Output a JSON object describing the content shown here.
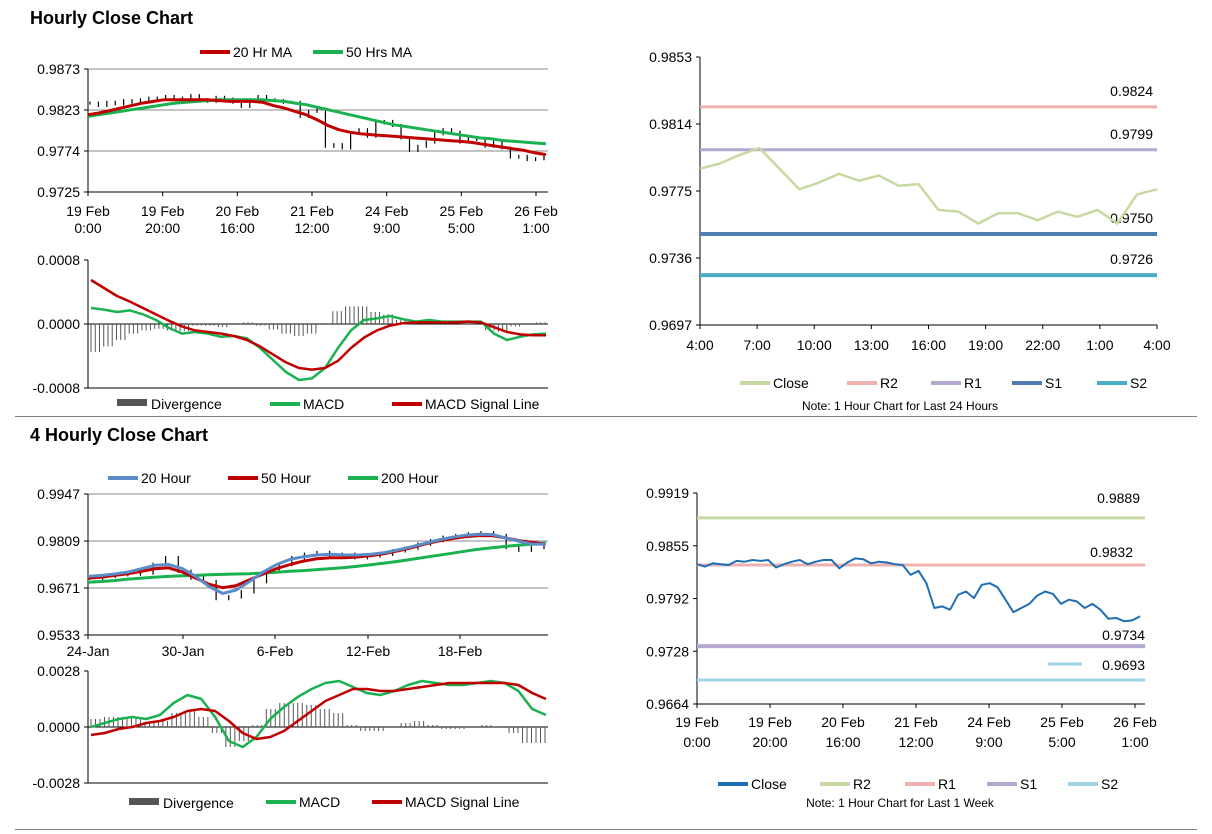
{
  "titles": {
    "hourly": "Hourly Close Chart",
    "four_hourly": "4 Hourly Close Chart"
  },
  "colors": {
    "red": "#c00000",
    "green": "#1ab150",
    "blue": "#5a8cc8",
    "grey": "#555555",
    "closeLight": "#c7d9a0",
    "r2": "#efb0b0",
    "r1": "#b4a8d0",
    "s1": "#4f7db1",
    "s2": "#4aaec4",
    "closeBlue": "#1f6eb4",
    "r2g": "#c7d9a0",
    "r1p": "#efb0b0",
    "s1p": "#b4a8d0",
    "s2c": "#9fd3e3"
  },
  "chart_data": [
    {
      "id": "hourly_price",
      "type": "line",
      "legend": [
        "20 Hr MA",
        "50 Hrs MA"
      ],
      "ylim": [
        0.9725,
        0.9873
      ],
      "yticks": [
        "0.9873",
        "0.9823",
        "0.9774",
        "0.9725"
      ],
      "xticks": [
        [
          "19 Feb",
          "0:00"
        ],
        [
          "19 Feb",
          "20:00"
        ],
        [
          "20 Feb",
          "16:00"
        ],
        [
          "21 Feb",
          "12:00"
        ],
        [
          "24 Feb",
          "9:00"
        ],
        [
          "25 Feb",
          "5:00"
        ],
        [
          "26 Feb",
          "1:00"
        ]
      ],
      "close": [
        0.9832,
        0.9829,
        0.9833,
        0.9831,
        0.9835,
        0.9833,
        0.9836,
        0.9838,
        0.9836,
        0.984,
        0.9838,
        0.9837,
        0.9841,
        0.9836,
        0.9834,
        0.9839,
        0.9837,
        0.9833,
        0.9828,
        0.9836,
        0.984,
        0.9836,
        0.9835,
        0.9833,
        0.9833,
        0.9816,
        0.9822,
        0.9825,
        0.978,
        0.9782,
        0.9778,
        0.9796,
        0.98,
        0.9792,
        0.9808,
        0.981,
        0.9805,
        0.979,
        0.9775,
        0.978,
        0.9785,
        0.9795,
        0.98,
        0.9797,
        0.9785,
        0.979,
        0.9788,
        0.978,
        0.9785,
        0.9778,
        0.9767,
        0.9768,
        0.9764,
        0.9765,
        0.977
      ],
      "ma20": [
        0.9818,
        0.982,
        0.9823,
        0.9826,
        0.9829,
        0.9832,
        0.9834,
        0.9836,
        0.9836,
        0.9836,
        0.9836,
        0.9836,
        0.9835,
        0.9834,
        0.9834,
        0.9834,
        0.9833,
        0.9829,
        0.9826,
        0.9822,
        0.9818,
        0.9812,
        0.9805,
        0.98,
        0.9797,
        0.9795,
        0.9794,
        0.9793,
        0.9792,
        0.9791,
        0.979,
        0.9789,
        0.9788,
        0.9787,
        0.9786,
        0.9785,
        0.9783,
        0.9781,
        0.9779,
        0.9777,
        0.9775,
        0.9772,
        0.977
      ],
      "ma50": [
        0.9816,
        0.9818,
        0.982,
        0.9822,
        0.9824,
        0.9826,
        0.9828,
        0.983,
        0.9832,
        0.9833,
        0.9834,
        0.9835,
        0.9836,
        0.9836,
        0.9836,
        0.9836,
        0.9836,
        0.9835,
        0.9834,
        0.9832,
        0.983,
        0.9827,
        0.9824,
        0.9821,
        0.9818,
        0.9815,
        0.9812,
        0.9809,
        0.9806,
        0.9804,
        0.9802,
        0.98,
        0.9798,
        0.9796,
        0.9794,
        0.9792,
        0.979,
        0.9789,
        0.9787,
        0.9786,
        0.9785,
        0.9784,
        0.9783
      ]
    },
    {
      "id": "hourly_macd",
      "type": "line",
      "legend": [
        "Divergence",
        "MACD",
        "MACD Signal Line"
      ],
      "ylim": [
        -0.0008,
        0.0008
      ],
      "yticks": [
        "0.0008",
        "0.0000",
        "-0.0008"
      ],
      "macd": [
        0.0002,
        0.00018,
        0.00015,
        0.00017,
        0.00012,
        5e-05,
        -5e-05,
        -0.00012,
        -0.0001,
        -0.00012,
        -0.00016,
        -0.00015,
        -0.00018,
        -0.0003,
        -0.00045,
        -0.0006,
        -0.0007,
        -0.00068,
        -0.00055,
        -0.0003,
        -8e-05,
        5e-05,
        7e-05,
        0.0001,
        6e-05,
        3e-05,
        5e-05,
        3e-05,
        3e-05,
        3e-05,
        3e-05,
        -0.00012,
        -0.0002,
        -0.00016,
        -0.00013,
        -0.00012
      ],
      "signal": [
        0.00055,
        0.00045,
        0.00035,
        0.00028,
        0.0002,
        0.00012,
        4e-05,
        -3e-05,
        -8e-05,
        -0.0001,
        -0.00012,
        -0.00015,
        -0.0002,
        -0.00028,
        -0.00038,
        -0.00048,
        -0.00055,
        -0.00057,
        -0.00055,
        -0.00046,
        -0.0003,
        -0.00017,
        -8e-05,
        -2e-05,
        1e-05,
        2e-05,
        2e-05,
        2e-05,
        2e-05,
        3e-05,
        2e-05,
        -4e-05,
        -0.0001,
        -0.00013,
        -0.00014,
        -0.00014
      ],
      "divergence": [
        -0.00035,
        -0.00028,
        -0.0002,
        -0.00012,
        -8e-05,
        -6e-05,
        -8e-05,
        -9e-05,
        -2e-05,
        -2e-05,
        -4e-05,
        0.0,
        2e-05,
        -2e-05,
        -7e-05,
        -0.00012,
        -0.00015,
        -0.00012,
        0.0,
        0.00016,
        0.00022,
        0.00022,
        0.00015,
        0.00012,
        5e-05,
        1e-05,
        3e-05,
        1e-05,
        1e-05,
        0.0,
        1e-05,
        -8e-05,
        -0.0001,
        -3e-05,
        1e-05,
        2e-05
      ]
    },
    {
      "id": "hourly_levels",
      "type": "line",
      "legend": [
        "Close",
        "R2",
        "R1",
        "S1",
        "S2"
      ],
      "note": "Note: 1 Hour Chart for Last 24 Hours",
      "ylim": [
        0.9697,
        0.9853
      ],
      "yticks": [
        "0.9853",
        "0.9814",
        "0.9775",
        "0.9736",
        "0.9697"
      ],
      "xticks": [
        "4:00",
        "7:00",
        "10:00",
        "13:00",
        "16:00",
        "19:00",
        "22:00",
        "1:00",
        "4:00"
      ],
      "close": [
        0.9788,
        0.9791,
        0.9796,
        0.98,
        0.9788,
        0.9776,
        0.978,
        0.9785,
        0.9781,
        0.9784,
        0.9778,
        0.9779,
        0.9764,
        0.9763,
        0.9756,
        0.9762,
        0.9762,
        0.9758,
        0.9763,
        0.976,
        0.9764,
        0.9756,
        0.9773,
        0.9776
      ],
      "levels": {
        "R2": 0.9824,
        "R1": 0.9799,
        "S1": 0.975,
        "S2": 0.9726
      },
      "labels": {
        "R2": "0.9824",
        "R1": "0.9799",
        "S1": "0.9750",
        "S2": "0.9726"
      }
    },
    {
      "id": "four_hourly_price",
      "type": "line",
      "legend": [
        "20 Hour",
        "50 Hour",
        "200 Hour"
      ],
      "ylim": [
        0.9533,
        0.9947
      ],
      "yticks": [
        "0.9947",
        "0.9809",
        "0.9671",
        "0.9533"
      ],
      "xticks": [
        "24-Jan",
        "30-Jan",
        "6-Feb",
        "12-Feb",
        "18-Feb"
      ],
      "close": [
        0.97,
        0.9705,
        0.971,
        0.9712,
        0.9715,
        0.974,
        0.976,
        0.972,
        0.97,
        0.969,
        0.964,
        0.9645,
        0.966,
        0.969,
        0.972,
        0.974,
        0.976,
        0.977,
        0.9775,
        0.9768,
        0.977,
        0.976,
        0.9765,
        0.977,
        0.978,
        0.9788,
        0.98,
        0.981,
        0.982,
        0.9825,
        0.983,
        0.9833,
        0.9825,
        0.979,
        0.9782,
        0.979,
        0.98
      ],
      "ma20": [
        0.9705,
        0.9708,
        0.9712,
        0.9718,
        0.9728,
        0.9738,
        0.974,
        0.9728,
        0.9705,
        0.9675,
        0.9655,
        0.9665,
        0.969,
        0.9718,
        0.974,
        0.9755,
        0.9763,
        0.9768,
        0.977,
        0.9768,
        0.9768,
        0.977,
        0.9775,
        0.9783,
        0.9792,
        0.9802,
        0.9812,
        0.982,
        0.9826,
        0.9829,
        0.9828,
        0.9818,
        0.9808,
        0.98,
        0.98
      ],
      "ma50": [
        0.97,
        0.9703,
        0.9708,
        0.9713,
        0.972,
        0.9728,
        0.973,
        0.9718,
        0.97,
        0.9682,
        0.9672,
        0.9678,
        0.9695,
        0.9712,
        0.9728,
        0.974,
        0.975,
        0.9757,
        0.976,
        0.976,
        0.9762,
        0.9766,
        0.9772,
        0.978,
        0.9789,
        0.98,
        0.9809,
        0.9816,
        0.9822,
        0.9825,
        0.9825,
        0.9818,
        0.981,
        0.9805,
        0.98
      ],
      "ma200": [
        0.9688,
        0.969,
        0.9693,
        0.9697,
        0.97,
        0.9703,
        0.9705,
        0.9707,
        0.9708,
        0.971,
        0.9711,
        0.9712,
        0.9713,
        0.9715,
        0.9717,
        0.972,
        0.9722,
        0.9725,
        0.9728,
        0.9731,
        0.9735,
        0.9739,
        0.9744,
        0.9749,
        0.9755,
        0.9761,
        0.9767,
        0.9773,
        0.9779,
        0.9785,
        0.9789,
        0.9793,
        0.9797,
        0.98,
        0.9803
      ]
    },
    {
      "id": "four_hourly_macd",
      "type": "line",
      "legend": [
        "Divergence",
        "MACD",
        "MACD Signal Line"
      ],
      "ylim": [
        -0.0028,
        0.0028
      ],
      "yticks": [
        "0.0028",
        "0.0000",
        "-0.0028"
      ],
      "macd": [
        0.0,
        0.0002,
        0.0004,
        0.0005,
        0.0004,
        0.0006,
        0.0012,
        0.0016,
        0.0014,
        0.0005,
        -0.0007,
        -0.001,
        -0.0005,
        0.0004,
        0.001,
        0.0015,
        0.0019,
        0.0022,
        0.0023,
        0.002,
        0.0017,
        0.0016,
        0.0018,
        0.0021,
        0.0023,
        0.0022,
        0.0021,
        0.0021,
        0.0022,
        0.0023,
        0.0022,
        0.0018,
        0.0009,
        0.0006
      ],
      "signal": [
        -0.0004,
        -0.0003,
        -0.0001,
        0.0,
        0.0002,
        0.0003,
        0.0005,
        0.0008,
        0.0009,
        0.0008,
        0.0003,
        -0.0003,
        -0.0006,
        -0.0005,
        -0.0002,
        0.0003,
        0.0008,
        0.0013,
        0.0016,
        0.0019,
        0.0019,
        0.0018,
        0.0018,
        0.0019,
        0.002,
        0.0021,
        0.0022,
        0.0022,
        0.0022,
        0.0022,
        0.0022,
        0.0021,
        0.0017,
        0.0014
      ],
      "divergence": [
        0.0004,
        0.0005,
        0.0005,
        0.0005,
        0.0002,
        0.0003,
        0.0007,
        0.0008,
        0.0005,
        -0.0003,
        -0.001,
        -0.0007,
        0.0001,
        0.0009,
        0.0012,
        0.0012,
        0.0011,
        0.0009,
        0.0007,
        0.0001,
        -0.0002,
        -0.0002,
        0.0,
        0.0002,
        0.0003,
        0.0001,
        -0.0001,
        -0.0001,
        0.0,
        0.0001,
        0.0,
        -0.0003,
        -0.0008,
        -0.0008
      ]
    },
    {
      "id": "four_hourly_levels",
      "type": "line",
      "legend": [
        "Close",
        "R2",
        "R1",
        "S1",
        "S2"
      ],
      "note": "Note: 1 Hour Chart for Last 1 Week",
      "ylim": [
        0.9664,
        0.9919
      ],
      "yticks": [
        "0.9919",
        "0.9855",
        "0.9792",
        "0.9728",
        "0.9664"
      ],
      "xticks": [
        [
          "19 Feb",
          "0:00"
        ],
        [
          "19 Feb",
          "20:00"
        ],
        [
          "20 Feb",
          "16:00"
        ],
        [
          "21 Feb",
          "12:00"
        ],
        [
          "24 Feb",
          "9:00"
        ],
        [
          "25 Feb",
          "5:00"
        ],
        [
          "26 Feb",
          "1:00"
        ]
      ],
      "close": [
        0.9833,
        0.983,
        0.9834,
        0.9833,
        0.9832,
        0.9837,
        0.9836,
        0.9838,
        0.9837,
        0.9838,
        0.9829,
        0.9833,
        0.9836,
        0.9838,
        0.9833,
        0.9836,
        0.9838,
        0.9838,
        0.9828,
        0.9835,
        0.984,
        0.9839,
        0.9834,
        0.9836,
        0.9835,
        0.9833,
        0.9832,
        0.982,
        0.9825,
        0.981,
        0.978,
        0.9782,
        0.9778,
        0.9796,
        0.98,
        0.9792,
        0.9808,
        0.981,
        0.9805,
        0.979,
        0.9775,
        0.978,
        0.9785,
        0.9795,
        0.98,
        0.9797,
        0.9785,
        0.979,
        0.9788,
        0.978,
        0.9785,
        0.9778,
        0.9767,
        0.9768,
        0.9764,
        0.9765,
        0.977
      ],
      "levels": {
        "R2": 0.9889,
        "R1": 0.9832,
        "S1": 0.9734,
        "S2": 0.9693
      },
      "labels": {
        "R2": "0.9889",
        "R1": "0.9832",
        "S1": "0.9734",
        "S2": "0.9693"
      }
    }
  ]
}
